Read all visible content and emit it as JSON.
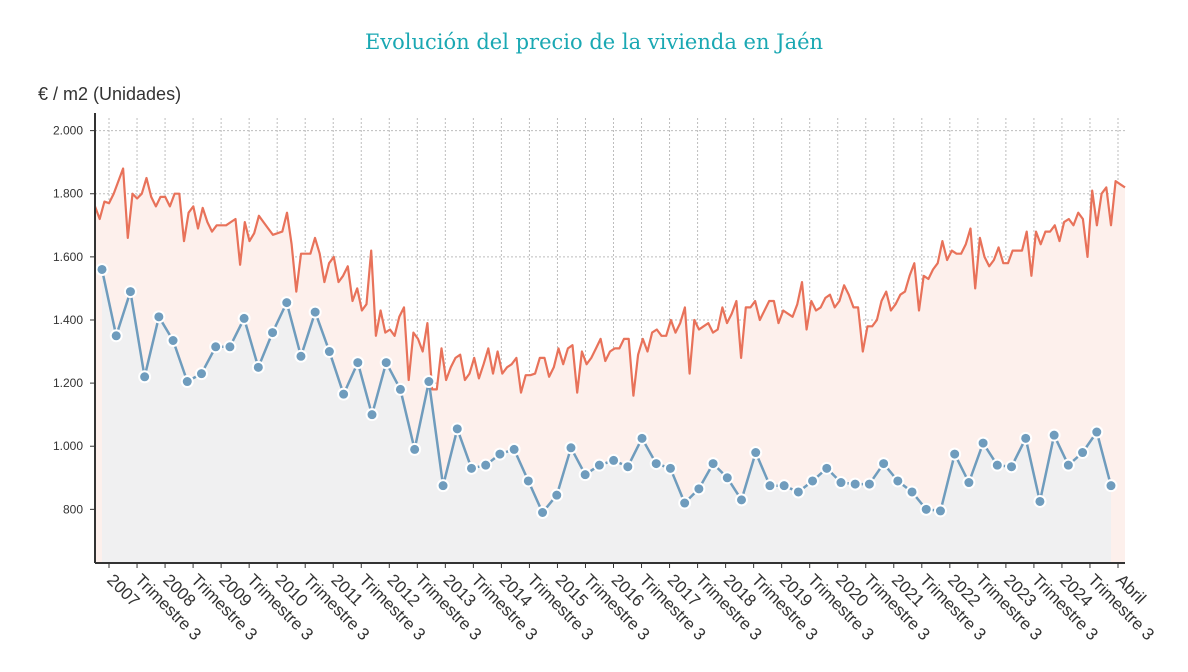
{
  "chart_data": {
    "type": "line",
    "title": "Evolución del precio de la vivienda en Jaén",
    "ylabel": "€ / m2 (Unidades)",
    "ylim": [
      630,
      2040
    ],
    "yticks": [
      800,
      1000,
      1200,
      1400,
      1600,
      1800,
      2000
    ],
    "ytick_labels": [
      "800",
      "1.000",
      "1.200",
      "1.400",
      "1.600",
      "1.800",
      "2.000"
    ],
    "x_ticks": [
      {
        "label": "2007",
        "pos": 0.5
      },
      {
        "label": "Trimestre 3",
        "pos": 2.5
      },
      {
        "label": "2008",
        "pos": 4.5
      },
      {
        "label": "Trimestre 3",
        "pos": 6.5
      },
      {
        "label": "2009",
        "pos": 8.5
      },
      {
        "label": "Trimestre 3",
        "pos": 10.5
      },
      {
        "label": "2010",
        "pos": 12.5
      },
      {
        "label": "Trimestre 3",
        "pos": 14.5
      },
      {
        "label": "2011",
        "pos": 16.5
      },
      {
        "label": "Trimestre 3",
        "pos": 18.5
      },
      {
        "label": "2012",
        "pos": 20.5
      },
      {
        "label": "Trimestre 3",
        "pos": 22.5
      },
      {
        "label": "2013",
        "pos": 24.5
      },
      {
        "label": "Trimestre 3",
        "pos": 26.5
      },
      {
        "label": "2014",
        "pos": 28.5
      },
      {
        "label": "Trimestre 3",
        "pos": 30.5
      },
      {
        "label": "2015",
        "pos": 32.5
      },
      {
        "label": "Trimestre 3",
        "pos": 34.5
      },
      {
        "label": "2016",
        "pos": 36.5
      },
      {
        "label": "Trimestre 3",
        "pos": 38.5
      },
      {
        "label": "2017",
        "pos": 40.5
      },
      {
        "label": "Trimestre 3",
        "pos": 42.5
      },
      {
        "label": "2018",
        "pos": 44.5
      },
      {
        "label": "Trimestre 3",
        "pos": 46.5
      },
      {
        "label": "2019",
        "pos": 48.5
      },
      {
        "label": "Trimestre 3",
        "pos": 50.5
      },
      {
        "label": "2020",
        "pos": 52.5
      },
      {
        "label": "Trimestre 3",
        "pos": 54.5
      },
      {
        "label": "2021",
        "pos": 56.5
      },
      {
        "label": "Trimestre 3",
        "pos": 58.5
      },
      {
        "label": "2022",
        "pos": 60.5
      },
      {
        "label": "Trimestre 3",
        "pos": 62.5
      },
      {
        "label": "2023",
        "pos": 64.5
      },
      {
        "label": "Trimestre 3",
        "pos": 66.5
      },
      {
        "label": "2024",
        "pos": 68.5
      },
      {
        "label": "Trimestre 3",
        "pos": 70.5
      },
      {
        "label": "Abril",
        "pos": 72.5
      }
    ],
    "x_range": [
      -0.5,
      73
    ],
    "series": [
      {
        "color": "#e8725a",
        "fill": "#fdf0ec",
        "marker": false,
        "x_start": -0.5,
        "x_end": 73,
        "values": [
          1760,
          1720,
          1775,
          1770,
          1800,
          1840,
          1880,
          1660,
          1800,
          1785,
          1800,
          1850,
          1790,
          1760,
          1790,
          1790,
          1760,
          1800,
          1800,
          1650,
          1740,
          1760,
          1690,
          1755,
          1710,
          1680,
          1700,
          1700,
          1700,
          1710,
          1720,
          1575,
          1710,
          1650,
          1675,
          1730,
          1710,
          1690,
          1670,
          1675,
          1680,
          1740,
          1640,
          1490,
          1610,
          1610,
          1610,
          1660,
          1610,
          1520,
          1580,
          1600,
          1520,
          1540,
          1570,
          1460,
          1500,
          1430,
          1450,
          1620,
          1350,
          1430,
          1360,
          1370,
          1350,
          1410,
          1440,
          1210,
          1360,
          1340,
          1300,
          1390,
          1180,
          1180,
          1310,
          1210,
          1250,
          1280,
          1290,
          1210,
          1230,
          1280,
          1215,
          1260,
          1310,
          1230,
          1300,
          1230,
          1250,
          1260,
          1280,
          1170,
          1225,
          1225,
          1230,
          1280,
          1280,
          1220,
          1250,
          1310,
          1260,
          1310,
          1320,
          1170,
          1300,
          1260,
          1280,
          1310,
          1340,
          1270,
          1300,
          1310,
          1310,
          1340,
          1340,
          1160,
          1290,
          1340,
          1300,
          1360,
          1370,
          1350,
          1350,
          1400,
          1360,
          1390,
          1440,
          1230,
          1400,
          1370,
          1380,
          1390,
          1360,
          1370,
          1440,
          1390,
          1420,
          1460,
          1280,
          1440,
          1440,
          1460,
          1400,
          1430,
          1460,
          1460,
          1390,
          1430,
          1420,
          1410,
          1450,
          1520,
          1370,
          1460,
          1430,
          1440,
          1470,
          1480,
          1440,
          1460,
          1510,
          1480,
          1440,
          1440,
          1300,
          1380,
          1380,
          1400,
          1460,
          1490,
          1430,
          1450,
          1480,
          1490,
          1540,
          1580,
          1430,
          1540,
          1530,
          1560,
          1580,
          1650,
          1590,
          1620,
          1610,
          1610,
          1640,
          1690,
          1500,
          1660,
          1600,
          1570,
          1590,
          1630,
          1580,
          1580,
          1620,
          1620,
          1620,
          1680,
          1540,
          1680,
          1640,
          1680,
          1680,
          1700,
          1650,
          1710,
          1720,
          1700,
          1740,
          1720,
          1600,
          1810,
          1700,
          1800,
          1820,
          1700,
          1840,
          1830,
          1820
        ]
      },
      {
        "color": "#6f9cbd",
        "fill": "#efeff1",
        "marker": true,
        "x_start": 0,
        "x_end": 72,
        "values": [
          1560,
          1350,
          1490,
          1220,
          1410,
          1335,
          1205,
          1230,
          1315,
          1315,
          1405,
          1250,
          1360,
          1455,
          1285,
          1425,
          1300,
          1165,
          1265,
          1100,
          1265,
          1180,
          990,
          1205,
          875,
          1055,
          930,
          940,
          975,
          990,
          890,
          790,
          845,
          995,
          910,
          940,
          955,
          935,
          1025,
          945,
          930,
          820,
          865,
          945,
          900,
          830,
          980,
          875,
          875,
          855,
          890,
          930,
          885,
          880,
          880,
          945,
          890,
          855,
          800,
          795,
          975,
          885,
          1010,
          940,
          935,
          1025,
          825,
          1035,
          940,
          980,
          1045,
          875
        ]
      }
    ]
  }
}
